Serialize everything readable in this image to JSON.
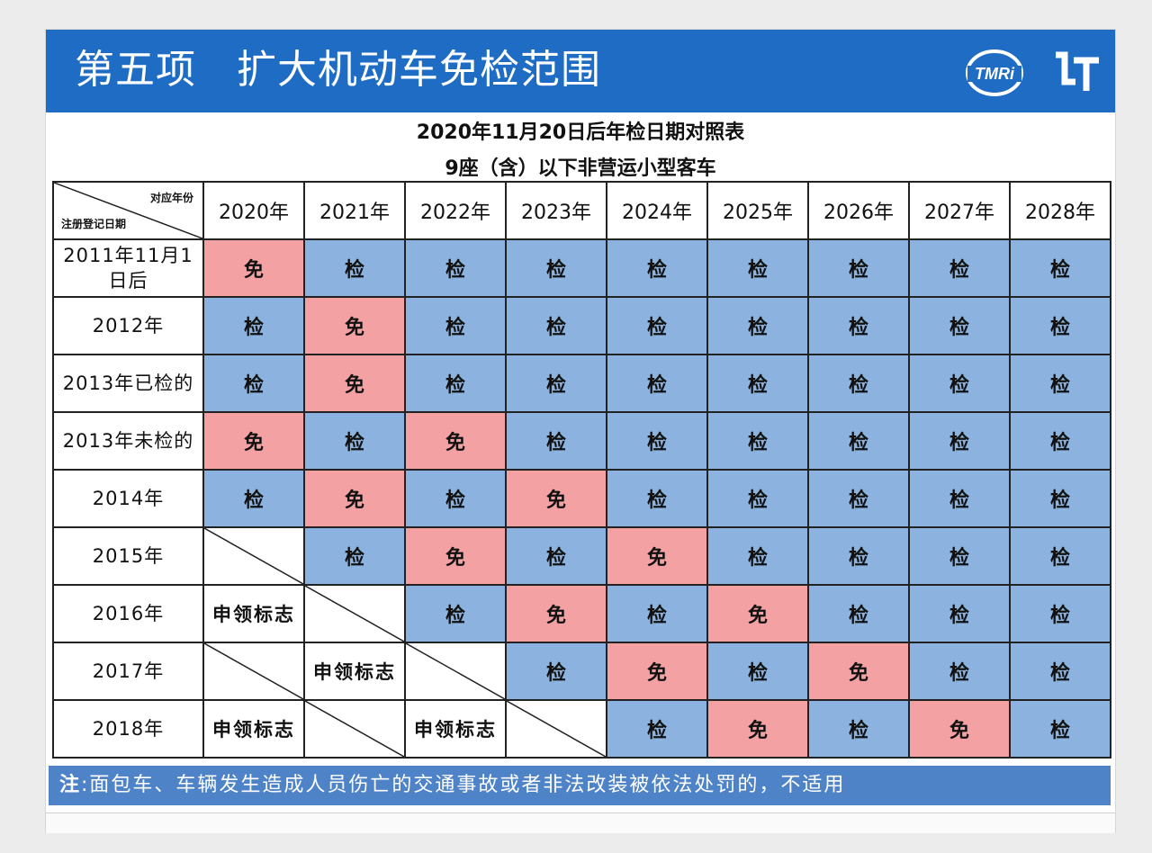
{
  "banner": {
    "title": "第五项　扩大机动车免检范围",
    "logo_tmri": "TMRi",
    "logo_lt": "LT",
    "color": "#1f6cc4"
  },
  "table_title": {
    "line1": "2020年11月20日后年检日期对照表",
    "line2": "9座（含）以下非营运小型客车"
  },
  "corner": {
    "top": "对应年份",
    "bottom": "注册登记日期"
  },
  "columns": [
    "2020年",
    "2021年",
    "2022年",
    "2023年",
    "2024年",
    "2025年",
    "2026年",
    "2027年",
    "2028年"
  ],
  "rows": [
    {
      "label": "2011年11月1日后",
      "cells": [
        "免",
        "检",
        "检",
        "检",
        "检",
        "检",
        "检",
        "检",
        "检"
      ]
    },
    {
      "label": "2012年",
      "cells": [
        "检",
        "免",
        "检",
        "检",
        "检",
        "检",
        "检",
        "检",
        "检"
      ]
    },
    {
      "label": "2013年已检的",
      "cells": [
        "检",
        "免",
        "检",
        "检",
        "检",
        "检",
        "检",
        "检",
        "检"
      ]
    },
    {
      "label": "2013年未检的",
      "cells": [
        "免",
        "检",
        "免",
        "检",
        "检",
        "检",
        "检",
        "检",
        "检"
      ]
    },
    {
      "label": "2014年",
      "cells": [
        "检",
        "免",
        "检",
        "免",
        "检",
        "检",
        "检",
        "检",
        "检"
      ]
    },
    {
      "label": "2015年",
      "cells": [
        "",
        "检",
        "免",
        "检",
        "免",
        "检",
        "检",
        "检",
        "检"
      ]
    },
    {
      "label": "2016年",
      "cells": [
        "申领标志",
        "",
        "检",
        "免",
        "检",
        "免",
        "检",
        "检",
        "检"
      ]
    },
    {
      "label": "2017年",
      "cells": [
        "",
        "申领标志",
        "",
        "检",
        "免",
        "检",
        "免",
        "检",
        "检"
      ]
    },
    {
      "label": "2018年",
      "cells": [
        "申领标志",
        "",
        "申领标志",
        "",
        "检",
        "免",
        "检",
        "免",
        "检"
      ]
    }
  ],
  "note": {
    "prefix": "注",
    "text": ":面包车、车辆发生造成人员伤亡的交通事故或者非法改装被依法处罚的，不适用"
  },
  "colors": {
    "jian": "#8cb3e0",
    "mian": "#f4a1a4",
    "note_bg": "#4f83c8"
  }
}
